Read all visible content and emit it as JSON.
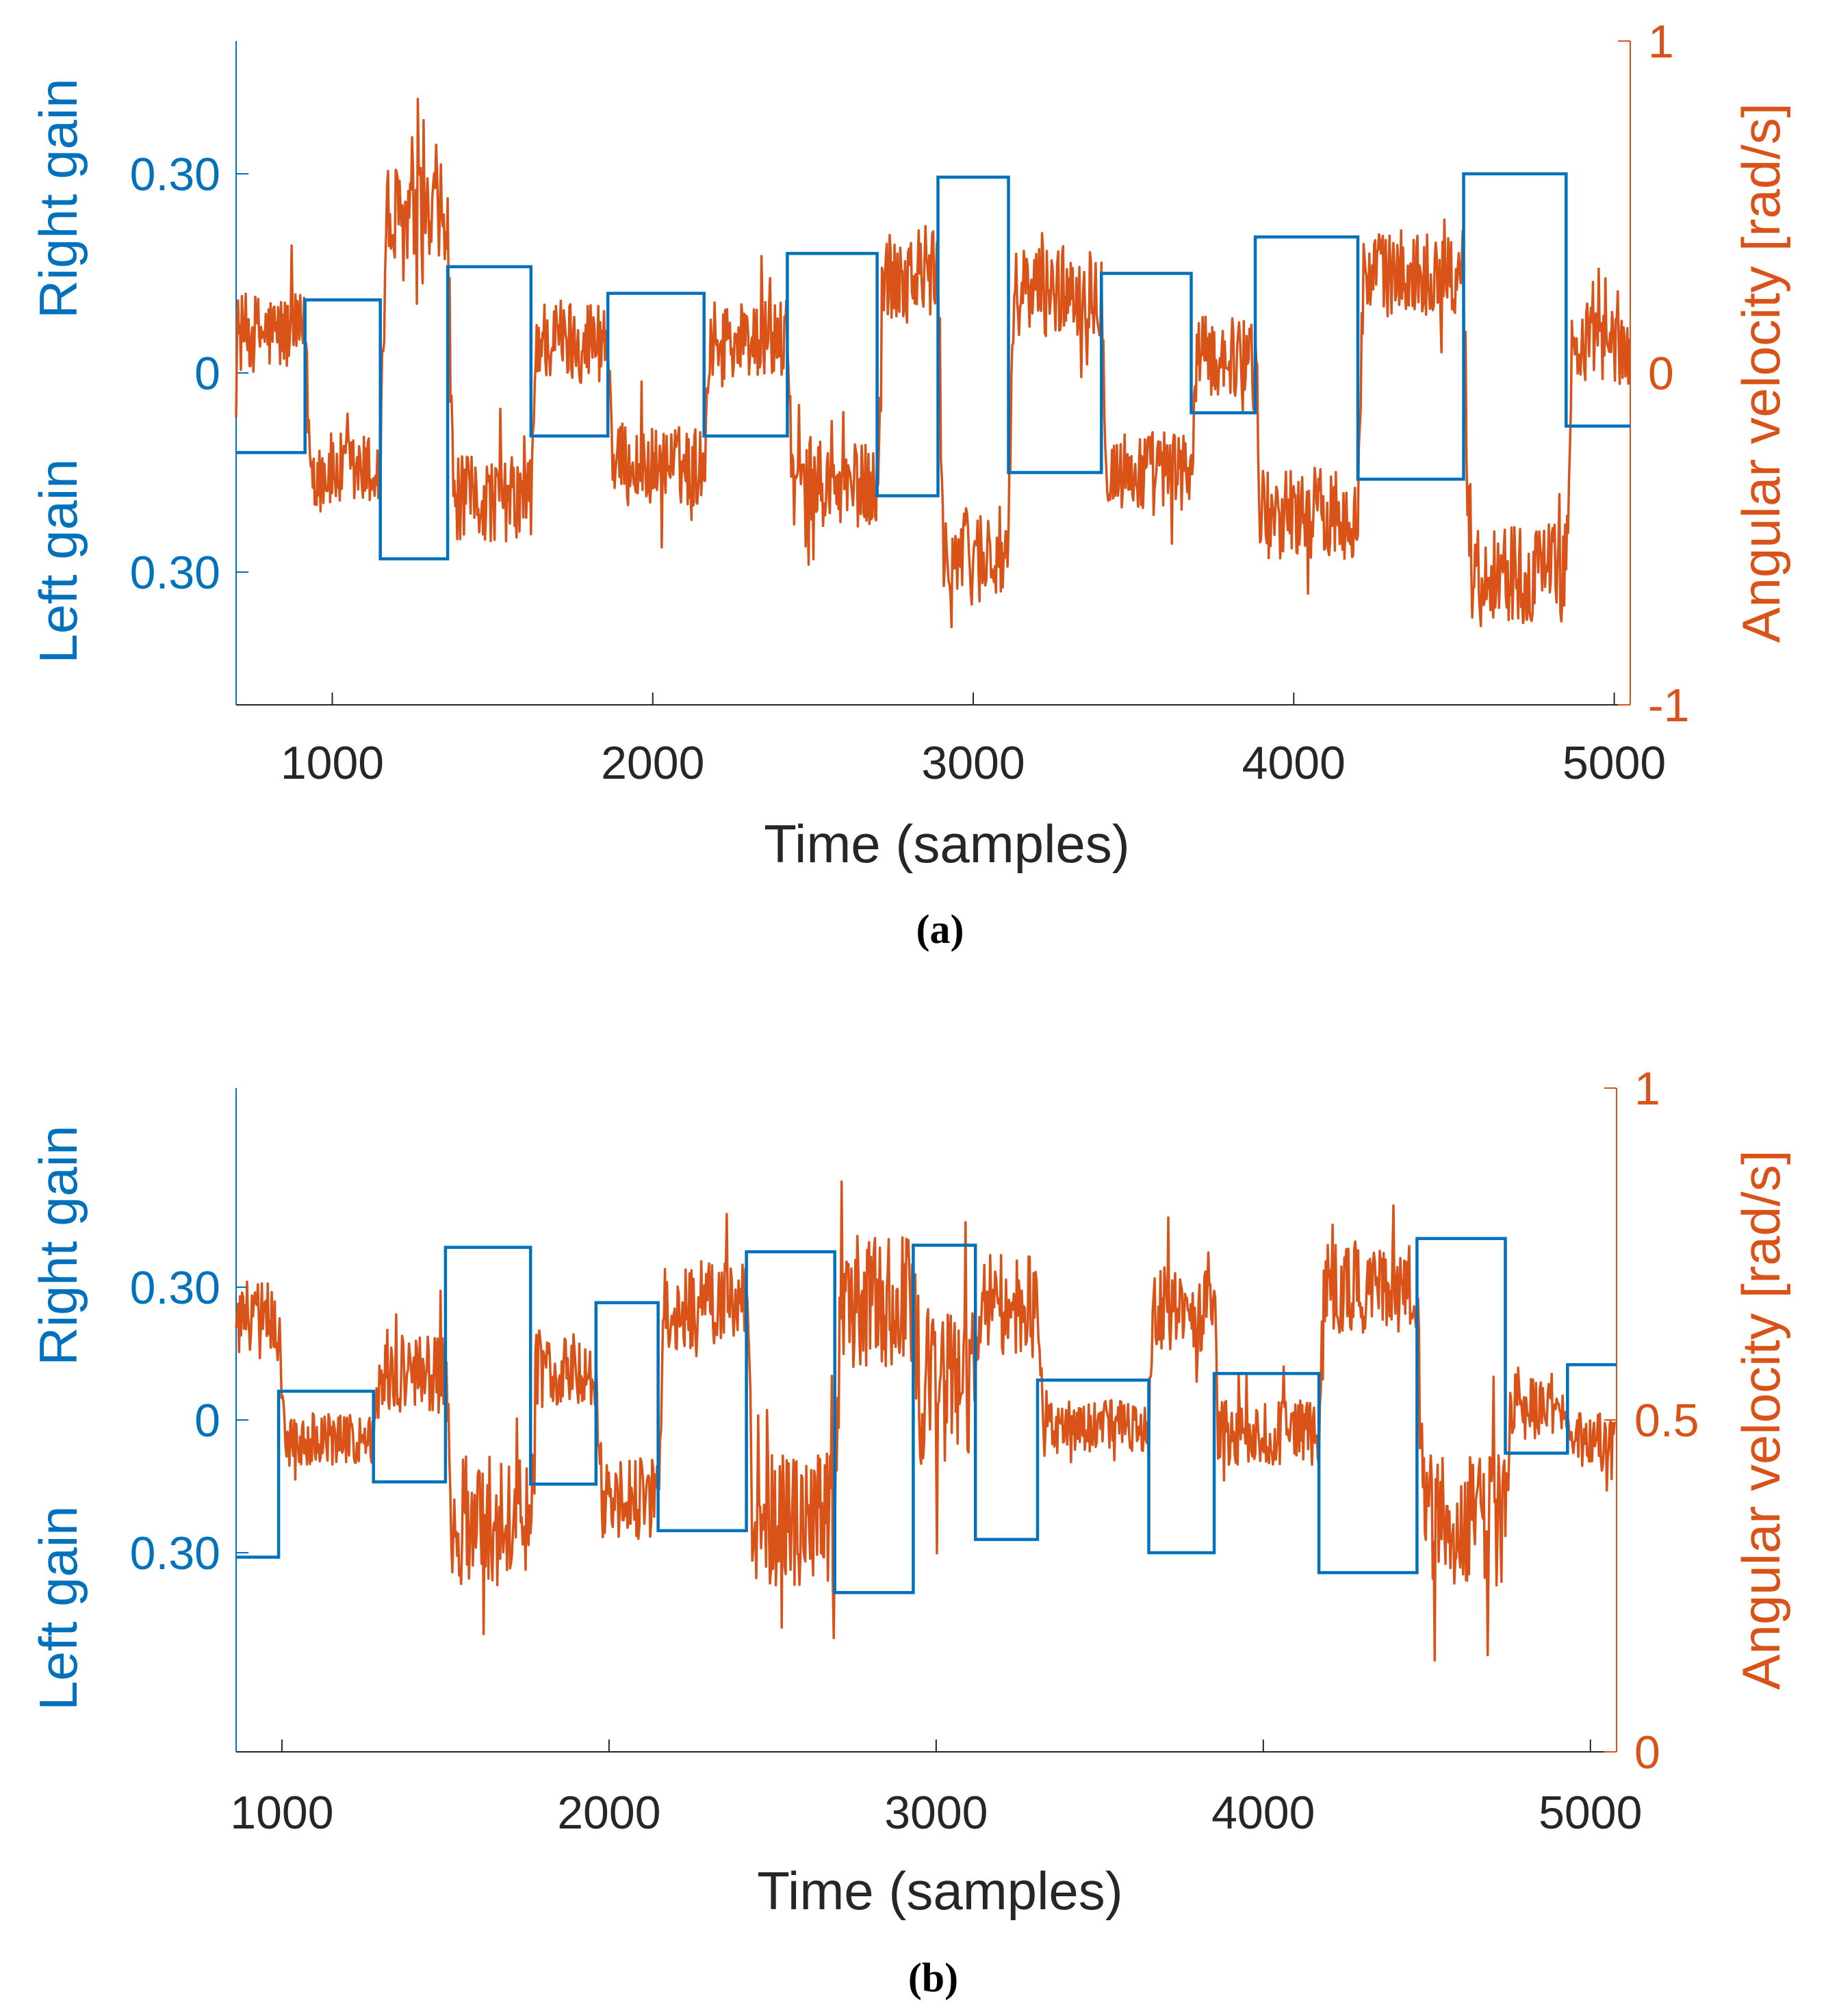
{
  "colors": {
    "gain": "#0072BD",
    "velocity": "#D95319",
    "axis": "#262626"
  },
  "chart_data": [
    {
      "panel": "a",
      "caption": "(a)",
      "type": "line",
      "xlabel": "Time (samples)",
      "xlim": [
        700,
        5050
      ],
      "xticks": [
        1000,
        2000,
        3000,
        4000,
        5000
      ],
      "xtick_labels": [
        "1000",
        "2000",
        "3000",
        "4000",
        "5000"
      ],
      "left_axis": {
        "label_top": "Right gain",
        "label_bottom": "Left gain",
        "ylim": [
          -0.5,
          0.5
        ],
        "ticks": [
          0.3,
          0,
          -0.3
        ],
        "tick_labels": [
          "0.30",
          "0",
          "0.30"
        ]
      },
      "right_axis": {
        "label": "Angular velocity [rad/s]",
        "ylim": [
          -1,
          1
        ],
        "ticks": [
          1,
          0,
          -1
        ],
        "tick_labels": [
          "1",
          "0",
          "-1"
        ]
      },
      "series": [
        {
          "name": "Gain",
          "axis": "left",
          "kind": "step",
          "segments": [
            {
              "x0": 700,
              "x1": 915,
              "y": -0.12
            },
            {
              "x0": 915,
              "x1": 1150,
              "y": 0.11
            },
            {
              "x0": 1150,
              "x1": 1360,
              "y": -0.28
            },
            {
              "x0": 1360,
              "x1": 1620,
              "y": 0.16
            },
            {
              "x0": 1620,
              "x1": 1860,
              "y": -0.095
            },
            {
              "x0": 1860,
              "x1": 2160,
              "y": 0.12
            },
            {
              "x0": 2160,
              "x1": 2420,
              "y": -0.095
            },
            {
              "x0": 2420,
              "x1": 2700,
              "y": 0.18
            },
            {
              "x0": 2700,
              "x1": 2890,
              "y": -0.185
            },
            {
              "x0": 2890,
              "x1": 3110,
              "y": 0.295
            },
            {
              "x0": 3110,
              "x1": 3400,
              "y": -0.15
            },
            {
              "x0": 3400,
              "x1": 3680,
              "y": 0.15
            },
            {
              "x0": 3680,
              "x1": 3880,
              "y": -0.06
            },
            {
              "x0": 3880,
              "x1": 4200,
              "y": 0.205
            },
            {
              "x0": 4200,
              "x1": 4530,
              "y": -0.16
            },
            {
              "x0": 4530,
              "x1": 4850,
              "y": 0.3
            },
            {
              "x0": 4850,
              "x1": 5050,
              "y": -0.08
            }
          ]
        },
        {
          "name": "Angular velocity",
          "axis": "right",
          "kind": "noisy-levels",
          "segments": [
            {
              "x0": 700,
              "x1": 915,
              "y": 0.12,
              "noise": 0.12
            },
            {
              "x0": 915,
              "x1": 1150,
              "y": -0.3,
              "noise": 0.12
            },
            {
              "x0": 1150,
              "x1": 1360,
              "y": 0.45,
              "noise": 0.18
            },
            {
              "x0": 1360,
              "x1": 1620,
              "y": -0.38,
              "noise": 0.13
            },
            {
              "x0": 1620,
              "x1": 1860,
              "y": 0.1,
              "noise": 0.13
            },
            {
              "x0": 1860,
              "x1": 2160,
              "y": -0.28,
              "noise": 0.12
            },
            {
              "x0": 2160,
              "x1": 2420,
              "y": 0.1,
              "noise": 0.12
            },
            {
              "x0": 2420,
              "x1": 2700,
              "y": -0.34,
              "noise": 0.13
            },
            {
              "x0": 2700,
              "x1": 2890,
              "y": 0.3,
              "noise": 0.15
            },
            {
              "x0": 2890,
              "x1": 3110,
              "y": -0.55,
              "noise": 0.15
            },
            {
              "x0": 3110,
              "x1": 3400,
              "y": 0.25,
              "noise": 0.14
            },
            {
              "x0": 3400,
              "x1": 3680,
              "y": -0.3,
              "noise": 0.13
            },
            {
              "x0": 3680,
              "x1": 3880,
              "y": 0.05,
              "noise": 0.12
            },
            {
              "x0": 3880,
              "x1": 4200,
              "y": -0.42,
              "noise": 0.14
            },
            {
              "x0": 4200,
              "x1": 4530,
              "y": 0.3,
              "noise": 0.13
            },
            {
              "x0": 4530,
              "x1": 4850,
              "y": -0.6,
              "noise": 0.15
            },
            {
              "x0": 4850,
              "x1": 5050,
              "y": 0.08,
              "noise": 0.12
            }
          ]
        }
      ]
    },
    {
      "panel": "b",
      "caption": "(b)",
      "type": "line",
      "xlabel": "Time (samples)",
      "xlim": [
        860,
        5080
      ],
      "xticks": [
        1000,
        2000,
        3000,
        4000,
        5000
      ],
      "xtick_labels": [
        "1000",
        "2000",
        "3000",
        "4000",
        "5000"
      ],
      "left_axis": {
        "label_top": "Right gain",
        "label_bottom": "Left gain",
        "ylim": [
          -0.75,
          0.75
        ],
        "ticks": [
          0.3,
          0,
          -0.3
        ],
        "tick_labels": [
          "0.30",
          "0",
          "0.30"
        ]
      },
      "right_axis": {
        "label": "Angular velocity [rad/s]",
        "ylim": [
          0,
          1
        ],
        "ticks": [
          1,
          0.5,
          0
        ],
        "tick_labels": [
          "1",
          "0.5",
          "0"
        ]
      },
      "series": [
        {
          "name": "Gain",
          "axis": "left",
          "kind": "step",
          "segments": [
            {
              "x0": 860,
              "x1": 990,
              "y": -0.31
            },
            {
              "x0": 990,
              "x1": 1280,
              "y": 0.065
            },
            {
              "x0": 1280,
              "x1": 1500,
              "y": -0.14
            },
            {
              "x0": 1500,
              "x1": 1760,
              "y": 0.39
            },
            {
              "x0": 1760,
              "x1": 1960,
              "y": -0.145
            },
            {
              "x0": 1960,
              "x1": 2150,
              "y": 0.265
            },
            {
              "x0": 2150,
              "x1": 2420,
              "y": -0.25
            },
            {
              "x0": 2420,
              "x1": 2690,
              "y": 0.38
            },
            {
              "x0": 2690,
              "x1": 2930,
              "y": -0.39
            },
            {
              "x0": 2930,
              "x1": 3120,
              "y": 0.395
            },
            {
              "x0": 3120,
              "x1": 3310,
              "y": -0.27
            },
            {
              "x0": 3310,
              "x1": 3650,
              "y": 0.09
            },
            {
              "x0": 3650,
              "x1": 3850,
              "y": -0.3
            },
            {
              "x0": 3850,
              "x1": 4170,
              "y": 0.105
            },
            {
              "x0": 4170,
              "x1": 4470,
              "y": -0.345
            },
            {
              "x0": 4470,
              "x1": 4740,
              "y": 0.41
            },
            {
              "x0": 4740,
              "x1": 4930,
              "y": -0.075
            },
            {
              "x0": 4930,
              "x1": 5080,
              "y": 0.125
            }
          ]
        },
        {
          "name": "Angular velocity",
          "axis": "right",
          "kind": "noisy-levels",
          "segments": [
            {
              "x0": 860,
              "x1": 990,
              "y": 0.65,
              "noise": 0.06
            },
            {
              "x0": 990,
              "x1": 1280,
              "y": 0.47,
              "noise": 0.04
            },
            {
              "x0": 1280,
              "x1": 1500,
              "y": 0.57,
              "noise": 0.06
            },
            {
              "x0": 1500,
              "x1": 1760,
              "y": 0.35,
              "noise": 0.1
            },
            {
              "x0": 1760,
              "x1": 1960,
              "y": 0.58,
              "noise": 0.06
            },
            {
              "x0": 1960,
              "x1": 2150,
              "y": 0.38,
              "noise": 0.06
            },
            {
              "x0": 2150,
              "x1": 2420,
              "y": 0.67,
              "noise": 0.07
            },
            {
              "x0": 2420,
              "x1": 2690,
              "y": 0.35,
              "noise": 0.1
            },
            {
              "x0": 2690,
              "x1": 2930,
              "y": 0.68,
              "noise": 0.1
            },
            {
              "x0": 2930,
              "x1": 3120,
              "y": 0.55,
              "noise": 0.12
            },
            {
              "x0": 3120,
              "x1": 3310,
              "y": 0.67,
              "noise": 0.08
            },
            {
              "x0": 3310,
              "x1": 3650,
              "y": 0.49,
              "noise": 0.04
            },
            {
              "x0": 3650,
              "x1": 3850,
              "y": 0.67,
              "noise": 0.07
            },
            {
              "x0": 3850,
              "x1": 4170,
              "y": 0.48,
              "noise": 0.05
            },
            {
              "x0": 4170,
              "x1": 4470,
              "y": 0.7,
              "noise": 0.07
            },
            {
              "x0": 4470,
              "x1": 4740,
              "y": 0.35,
              "noise": 0.1
            },
            {
              "x0": 4740,
              "x1": 4930,
              "y": 0.52,
              "noise": 0.05
            },
            {
              "x0": 4930,
              "x1": 5080,
              "y": 0.47,
              "noise": 0.04
            }
          ]
        }
      ]
    }
  ]
}
